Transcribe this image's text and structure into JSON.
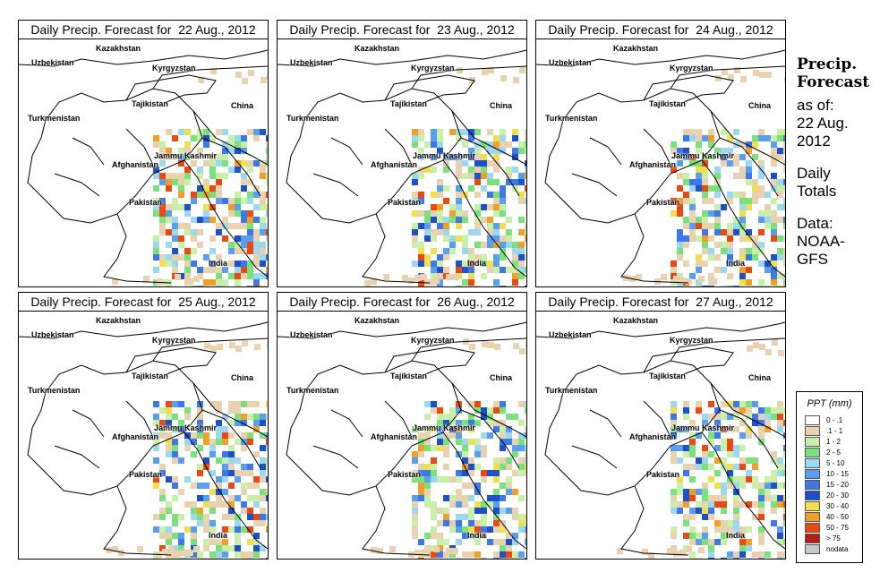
{
  "panels": [
    {
      "title": "Daily Precip. Forecast for  22 Aug., 2012"
    },
    {
      "title": "Daily Precip. Forecast for  23 Aug., 2012"
    },
    {
      "title": "Daily Precip. Forecast for  24 Aug., 2012"
    },
    {
      "title": "Daily Precip. Forecast for  25 Aug., 2012"
    },
    {
      "title": "Daily Precip. Forecast for  26 Aug., 2012"
    },
    {
      "title": "Daily Precip. Forecast for  27 Aug., 2012"
    }
  ],
  "map_labels": {
    "kazakhstan": "Kazakhstan",
    "uzbekistan": "Uzbekistan",
    "kyrgyzstan": "Kyrgyzstan",
    "tajikistan": "Tajikistan",
    "china": "China",
    "turkmenistan": "Turkmenistan",
    "jammu_kashmir": "Jammu Kashmir",
    "afghanistan": "Afghanistan",
    "pakistan": "Pakistan",
    "india": "India"
  },
  "sidebar": {
    "title_line1": "Precip.",
    "title_line2": "Forecast",
    "asof_line1": "as of:",
    "asof_line2": "22 Aug.",
    "asof_line3": "2012",
    "daily_line1": "Daily",
    "daily_line2": "Totals",
    "data_line1": "Data:",
    "data_line2": "NOAA-",
    "data_line3": "GFS"
  },
  "legend": {
    "title": "PPT (mm)",
    "items": [
      {
        "label": "0 - .1",
        "color": "#ffffff"
      },
      {
        "label": ".1 - 1",
        "color": "#e8d2b0"
      },
      {
        "label": "1 - 2",
        "color": "#c8f0a8"
      },
      {
        "label": "2 - 5",
        "color": "#7be27b"
      },
      {
        "label": "5 - 10",
        "color": "#9cd8f0"
      },
      {
        "label": "10 - 15",
        "color": "#5a9ef0"
      },
      {
        "label": "15 - 20",
        "color": "#3c78e6"
      },
      {
        "label": "20 - 30",
        "color": "#1e50c8"
      },
      {
        "label": "30 - 40",
        "color": "#f0e050"
      },
      {
        "label": "40 - 50",
        "color": "#f0a028"
      },
      {
        "label": "50 - 75",
        "color": "#e84a14"
      },
      {
        "label": "> 75",
        "color": "#b41e14"
      },
      {
        "label": "nodata",
        "color": "#c8c8c8"
      }
    ]
  }
}
